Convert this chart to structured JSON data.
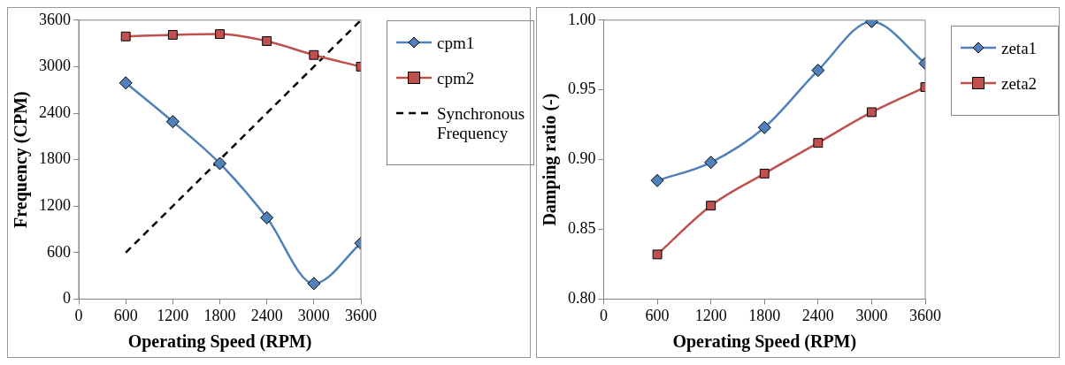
{
  "chart_data": [
    {
      "type": "line",
      "xlabel": "Operating Speed (RPM)",
      "ylabel": "Frequency (CPM)",
      "x": [
        600,
        1200,
        1800,
        2400,
        3000,
        3600
      ],
      "xlim": [
        0,
        3600
      ],
      "xticks": [
        0,
        600,
        1200,
        1800,
        2400,
        3000,
        3600
      ],
      "ylim": [
        0,
        3600
      ],
      "yticks": [
        0,
        600,
        1200,
        1800,
        2400,
        3000,
        3600
      ],
      "grid": false,
      "legend": "right",
      "series": [
        {
          "name": "cpm1",
          "color": "#4f81bd",
          "marker": "diamond",
          "line_style": "solid",
          "values": [
            2790,
            2290,
            1750,
            1050,
            200,
            720
          ]
        },
        {
          "name": "cpm2",
          "color": "#c0504d",
          "marker": "square",
          "line_style": "solid",
          "values": [
            3390,
            3410,
            3420,
            3330,
            3150,
            3000
          ]
        },
        {
          "name": "Synchronous Frequency",
          "color": "#000000",
          "marker": "none",
          "line_style": "dashed",
          "x": [
            600,
            3600
          ],
          "values": [
            600,
            3600
          ]
        }
      ]
    },
    {
      "type": "line",
      "xlabel": "Operating Speed (RPM)",
      "ylabel": "Damping ratio (-)",
      "x": [
        600,
        1200,
        1800,
        2400,
        3000,
        3600
      ],
      "xlim": [
        0,
        3600
      ],
      "xticks": [
        0,
        600,
        1200,
        1800,
        2400,
        3000,
        3600
      ],
      "ylim": [
        0.8,
        1.0
      ],
      "yticks": [
        {
          "value": 0.8,
          "label": "0.80"
        },
        {
          "value": 0.85,
          "label": "0.85"
        },
        {
          "value": 0.9,
          "label": "0.90"
        },
        {
          "value": 0.95,
          "label": "0.95"
        },
        {
          "value": 1.0,
          "label": "1.00"
        }
      ],
      "grid": false,
      "legend": "top right",
      "series": [
        {
          "name": "zeta1",
          "color": "#4f81bd",
          "marker": "diamond",
          "line_style": "solid",
          "values": [
            0.885,
            0.898,
            0.923,
            0.964,
            0.999,
            0.969
          ]
        },
        {
          "name": "zeta2",
          "color": "#c0504d",
          "marker": "square",
          "line_style": "solid",
          "values": [
            0.832,
            0.867,
            0.89,
            0.912,
            0.934,
            0.952
          ]
        }
      ]
    }
  ]
}
